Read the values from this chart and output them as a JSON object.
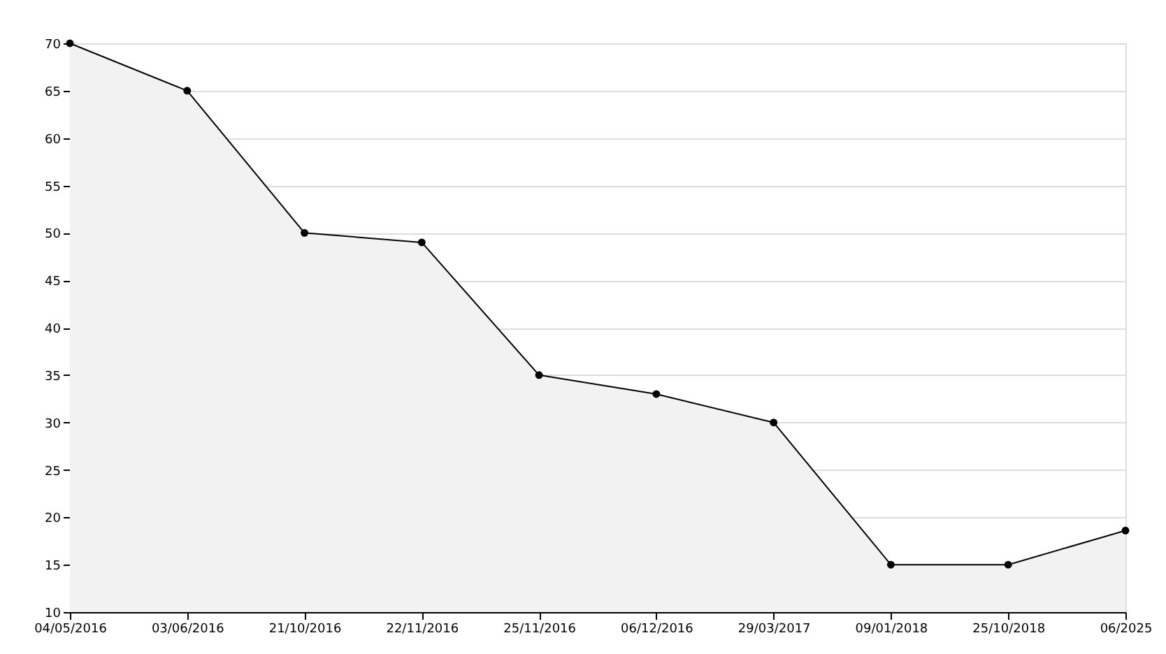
{
  "chart_data": {
    "type": "area",
    "categories": [
      "04/05/2016",
      "03/06/2016",
      "21/10/2016",
      "22/11/2016",
      "25/11/2016",
      "06/12/2016",
      "29/03/2017",
      "09/01/2018",
      "25/10/2018",
      "06/2025"
    ],
    "series": [
      {
        "color": "#000000",
        "values": [
          70,
          65,
          50,
          49,
          35,
          33,
          30,
          15,
          15,
          18.6
        ]
      }
    ],
    "ylim": [
      10,
      70
    ],
    "yticks": [
      10,
      15,
      20,
      25,
      30,
      35,
      40,
      45,
      50,
      55,
      60,
      65,
      70
    ],
    "grid": "y",
    "marker": "circle",
    "line_style": "solid"
  }
}
